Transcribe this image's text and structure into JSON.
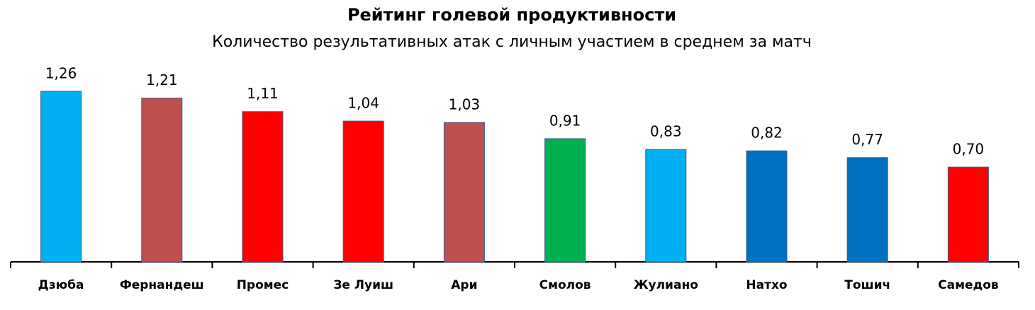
{
  "chart_data": {
    "type": "bar",
    "title": "Рейтинг голевой продуктивности",
    "subtitle": "Количество результативных атак с личным участием в среднем за матч",
    "categories": [
      "Дзюба",
      "Фернандеш",
      "Промес",
      "Зе Луиш",
      "Ари",
      "Смолов",
      "Жулиано",
      "Натхо",
      "Тошич",
      "Самедов"
    ],
    "values": [
      1.26,
      1.21,
      1.11,
      1.04,
      1.03,
      0.91,
      0.83,
      0.82,
      0.77,
      0.7
    ],
    "value_labels": [
      "1,26",
      "1,21",
      "1,11",
      "1,04",
      "1,03",
      "0,91",
      "0,83",
      "0,82",
      "0,77",
      "0,70"
    ],
    "colors": [
      "#00b0f0",
      "#c0504d",
      "#ff0000",
      "#ff0000",
      "#c0504d",
      "#00b050",
      "#00b0f0",
      "#0070c0",
      "#0070c0",
      "#ff0000"
    ]
  }
}
